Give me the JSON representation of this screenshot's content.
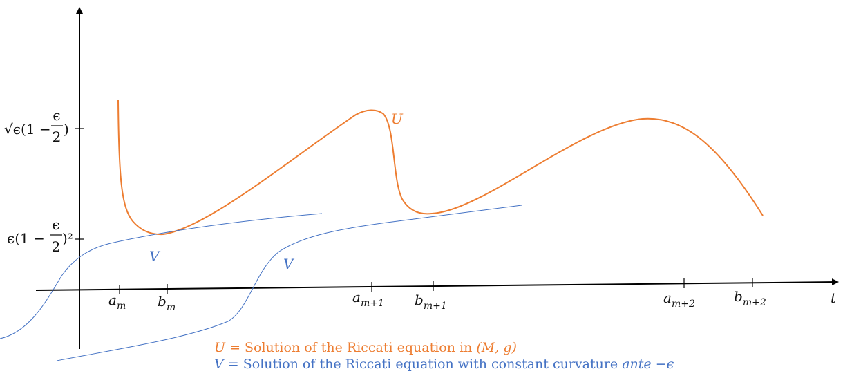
{
  "diagram": {
    "x_ticks": [
      {
        "main": "a",
        "sub": "m"
      },
      {
        "main": "b",
        "sub": "m"
      },
      {
        "main": "a",
        "sub": "m+1"
      },
      {
        "main": "b",
        "sub": "m+1"
      },
      {
        "main": "a",
        "sub": "m+2"
      },
      {
        "main": "b",
        "sub": "m+2"
      }
    ],
    "x_axis_label": "t",
    "y_ticks": [
      {
        "pre": "√ϵ(1 − ",
        "num": "ϵ",
        "den": "2",
        "post": ")"
      },
      {
        "pre": "ϵ(1 − ",
        "num": "ϵ",
        "den": "2",
        "post": ")²"
      }
    ],
    "curve_labels": {
      "u": "U",
      "v1": "V",
      "v2": "V"
    },
    "legend": {
      "u_var": "U",
      "u_text": "= Solution of the Riccati equation in ",
      "u_math": "(M, g)",
      "v_var": "V",
      "v_text": "= Solution of the Riccati equation with constant curvature",
      "v_math": "ante  −ϵ"
    },
    "colors": {
      "u": "#ED7D31",
      "v": "#4472C4",
      "axis": "#000000"
    }
  }
}
